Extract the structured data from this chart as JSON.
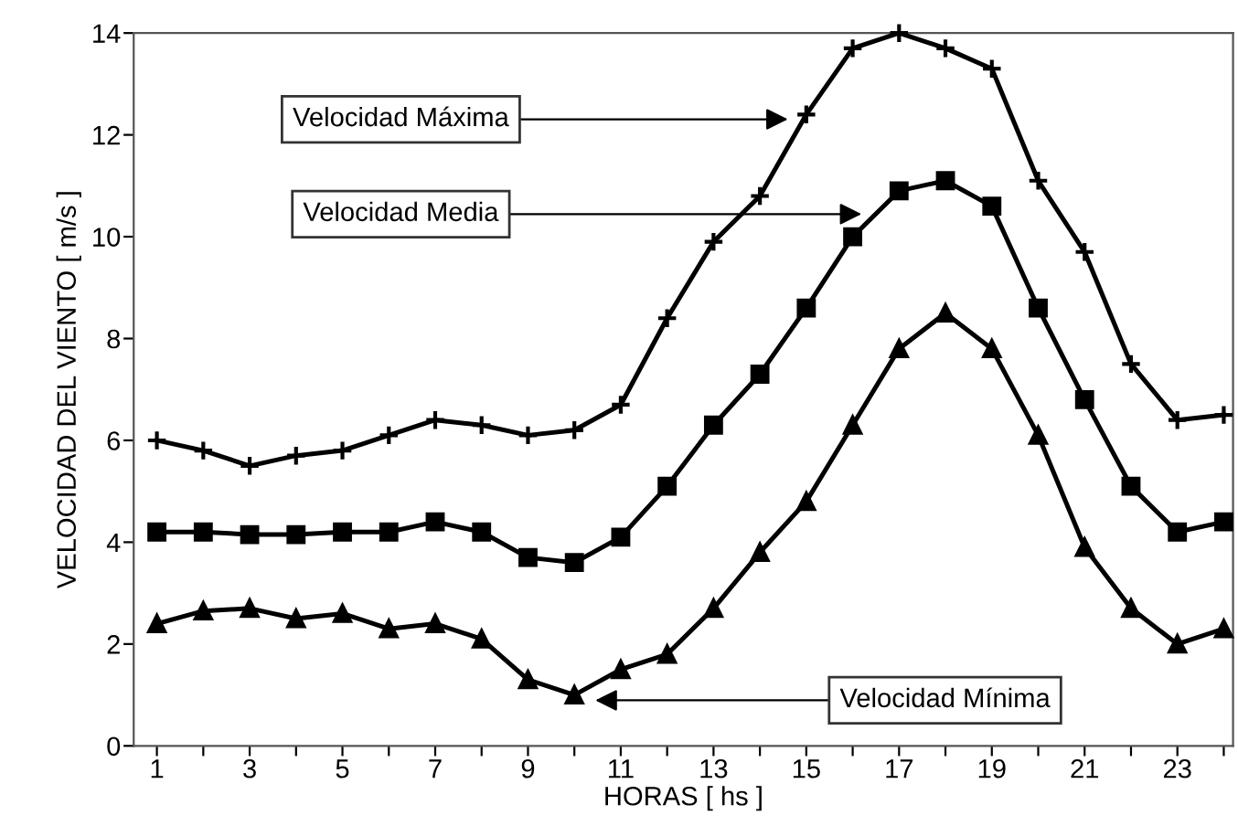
{
  "chart_data": {
    "type": "line",
    "xlabel": "HORAS [ hs ]",
    "ylabel": "VELOCIDAD DEL VIENTO [ m/s ]",
    "x": [
      1,
      2,
      3,
      4,
      5,
      6,
      7,
      8,
      9,
      10,
      11,
      12,
      13,
      14,
      15,
      16,
      17,
      18,
      19,
      20,
      21,
      22,
      23,
      24
    ],
    "series": [
      {
        "color": "#000000",
        "marker": "cross",
        "values": [
          6.0,
          5.8,
          5.5,
          5.7,
          5.8,
          6.1,
          6.4,
          6.3,
          6.1,
          6.2,
          6.7,
          8.4,
          9.9,
          10.8,
          12.4,
          13.7,
          14.0,
          13.7,
          13.3,
          11.1,
          9.7,
          7.5,
          6.4,
          6.5
        ]
      },
      {
        "color": "#000000",
        "marker": "square",
        "values": [
          4.2,
          4.2,
          4.15,
          4.15,
          4.2,
          4.2,
          4.4,
          4.2,
          3.7,
          3.6,
          4.1,
          5.1,
          6.3,
          7.3,
          8.6,
          10.0,
          10.9,
          11.1,
          10.6,
          8.6,
          6.8,
          5.1,
          4.2,
          4.4
        ]
      },
      {
        "color": "#000000",
        "marker": "triangle",
        "values": [
          2.4,
          2.65,
          2.7,
          2.5,
          2.6,
          2.3,
          2.4,
          2.1,
          1.3,
          1.0,
          1.5,
          1.8,
          2.7,
          3.8,
          4.8,
          6.3,
          7.8,
          8.5,
          7.8,
          6.1,
          3.9,
          2.7,
          2.0,
          2.3
        ]
      }
    ],
    "annotations": [
      "Velocidad Máxima",
      "Velocidad Media",
      "Velocidad Mínima"
    ],
    "xlim": [
      0.5,
      24.2
    ],
    "ylim": [
      0,
      14
    ],
    "xticks": [
      1,
      {
        "value": 2,
        "label": null
      },
      3,
      {
        "value": 4,
        "label": null
      },
      5,
      {
        "value": 6,
        "label": null
      },
      7,
      {
        "value": 8,
        "label": null
      },
      9,
      {
        "value": 10,
        "label": null
      },
      11,
      {
        "value": 12,
        "label": null
      },
      13,
      {
        "value": 14,
        "label": null
      },
      15,
      {
        "value": 16,
        "label": null
      },
      17,
      {
        "value": 18,
        "label": null
      },
      19,
      {
        "value": 20,
        "label": null
      },
      21,
      {
        "value": 22,
        "label": null
      },
      23,
      {
        "value": 24,
        "label": null
      }
    ],
    "yticks": [
      0,
      2,
      4,
      6,
      8,
      10,
      12,
      14
    ],
    "grid": false,
    "legend": false,
    "line_style": "solid"
  }
}
